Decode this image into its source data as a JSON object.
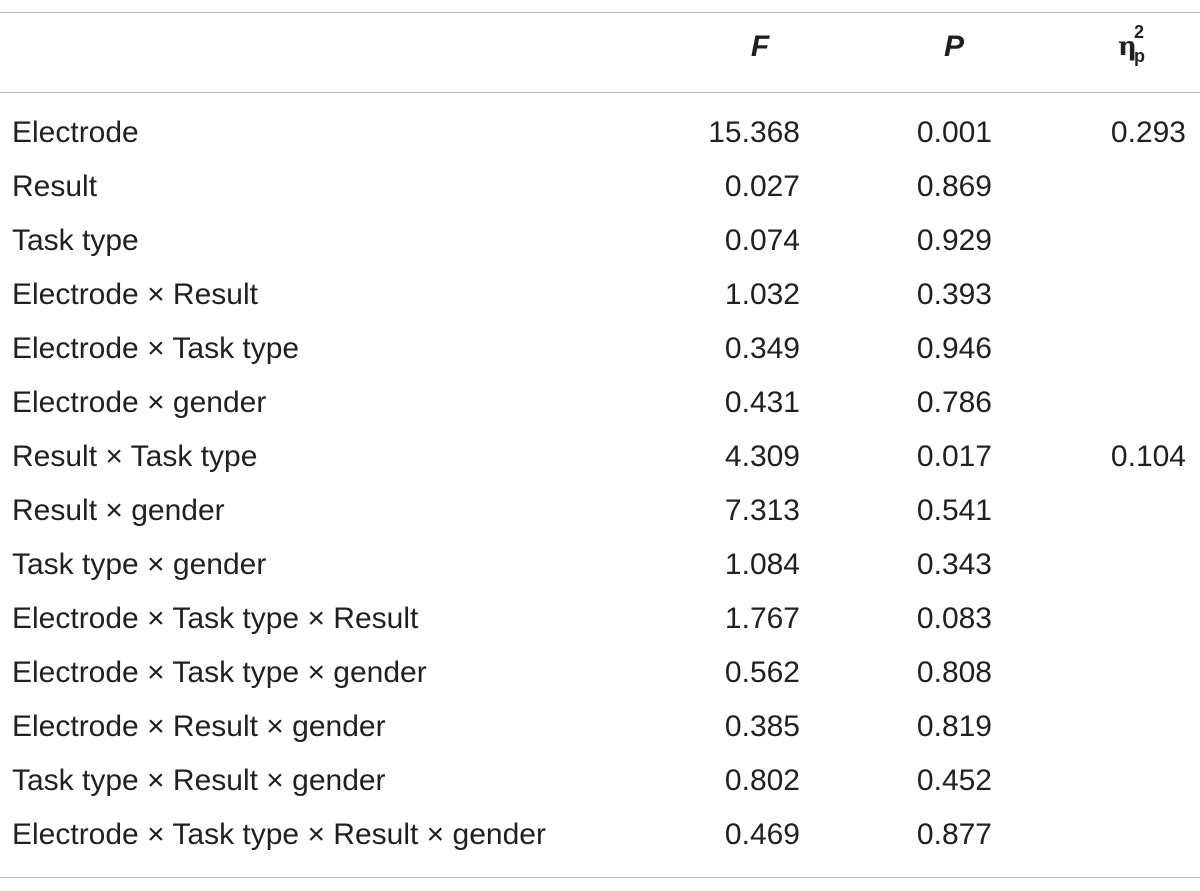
{
  "table": {
    "headers": {
      "effect": "",
      "f": "F",
      "p": "P",
      "eta_symbol": "η",
      "eta_sup": "2",
      "eta_sub": "p"
    },
    "rows": [
      {
        "effect": "Electrode",
        "f": "15.368",
        "p": "0.001",
        "eta": "0.293"
      },
      {
        "effect": "Result",
        "f": "0.027",
        "p": "0.869",
        "eta": ""
      },
      {
        "effect": "Task type",
        "f": "0.074",
        "p": "0.929",
        "eta": ""
      },
      {
        "effect": "Electrode × Result",
        "f": "1.032",
        "p": "0.393",
        "eta": ""
      },
      {
        "effect": "Electrode × Task type",
        "f": "0.349",
        "p": "0.946",
        "eta": ""
      },
      {
        "effect": "Electrode × gender",
        "f": "0.431",
        "p": "0.786",
        "eta": ""
      },
      {
        "effect": "Result × Task type",
        "f": "4.309",
        "p": "0.017",
        "eta": "0.104"
      },
      {
        "effect": "Result × gender",
        "f": "7.313",
        "p": "0.541",
        "eta": ""
      },
      {
        "effect": "Task type × gender",
        "f": "1.084",
        "p": "0.343",
        "eta": ""
      },
      {
        "effect": "Electrode × Task type × Result",
        "f": "1.767",
        "p": "0.083",
        "eta": ""
      },
      {
        "effect": "Electrode × Task type × gender",
        "f": "0.562",
        "p": "0.808",
        "eta": ""
      },
      {
        "effect": "Electrode × Result × gender",
        "f": "0.385",
        "p": "0.819",
        "eta": ""
      },
      {
        "effect": "Task type × Result × gender",
        "f": "0.802",
        "p": "0.452",
        "eta": ""
      },
      {
        "effect": "Electrode × Task type × Result × gender",
        "f": "0.469",
        "p": "0.877",
        "eta": ""
      }
    ]
  }
}
